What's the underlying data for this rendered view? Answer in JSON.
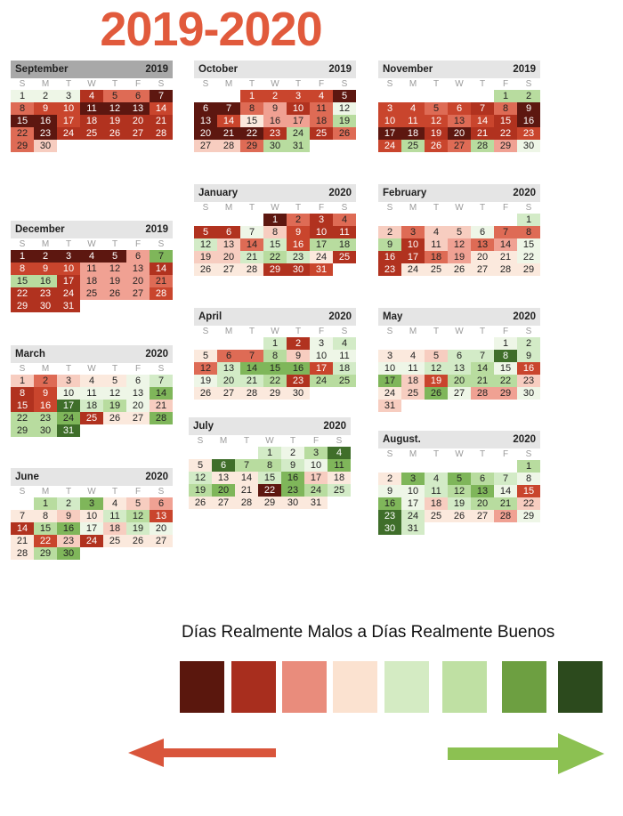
{
  "title": "2019-2020",
  "weekday_labels": [
    "S",
    "M",
    "T",
    "W",
    "T",
    "F",
    "S"
  ],
  "scale": {
    "dm": "#5d1710",
    "dr": "#b1321f",
    "md": "#c9452d",
    "rr": "#de6b55",
    "lr": "#f0a193",
    "pk": "#f7cdc0",
    "be": "#fbe9dd",
    "wg": "#eef6e7",
    "lg": "#d3ebc7",
    "mg": "#b8dc9f",
    "gg": "#7fb65a",
    "dg": "#3f6e2a"
  },
  "months": [
    {
      "name": "September",
      "year": "2019",
      "start": 0,
      "days": 30,
      "dark_header": true,
      "colors": [
        "wg",
        "wg",
        "wg",
        "dr",
        "rr",
        "rr",
        "dm",
        "rr",
        "md",
        "md",
        "dm",
        "dm",
        "dm",
        "md",
        "dm",
        "dm",
        "md",
        "dr",
        "dr",
        "dr",
        "dr",
        "rr",
        "dm",
        "dr",
        "dr",
        "dr",
        "dr",
        "dr",
        "rr",
        "pk"
      ]
    },
    {
      "name": "October",
      "year": "2019",
      "start": 2,
      "days": 31,
      "colors": [
        "md",
        "md",
        "md",
        "md",
        "dm",
        "dm",
        "dm",
        "rr",
        "lr",
        "dr",
        "rr",
        "wg",
        "dm",
        "md",
        "be",
        "lr",
        "lr",
        "rr",
        "mg",
        "dm",
        "dm",
        "dm",
        "dr",
        "mg",
        "dr",
        "rr",
        "pk",
        "pk",
        "rr",
        "mg",
        "mg"
      ]
    },
    {
      "name": "November",
      "year": "2019",
      "start": 5,
      "days": 30,
      "colors": [
        "mg",
        "mg",
        "md",
        "md",
        "rr",
        "md",
        "dr",
        "rr",
        "dm",
        "md",
        "md",
        "md",
        "rr",
        "md",
        "dr",
        "dm",
        "dm",
        "dm",
        "dr",
        "dm",
        "dr",
        "dr",
        "md",
        "md",
        "mg",
        "md",
        "rr",
        "mg",
        "lr",
        "wg"
      ]
    },
    {
      "name": "December",
      "year": "2019",
      "start": 0,
      "days": 31,
      "colors": [
        "dm",
        "dm",
        "dm",
        "dm",
        "dm",
        "lr",
        "gg",
        "md",
        "md",
        "md",
        "lr",
        "lr",
        "lr",
        "dr",
        "mg",
        "mg",
        "dr",
        "lr",
        "lr",
        "lr",
        "rr",
        "dr",
        "dr",
        "dr",
        "lr",
        "lr",
        "lr",
        "md",
        "dr",
        "dr",
        "dr"
      ]
    },
    {
      "name": "January",
      "year": "2020",
      "start": 3,
      "days": 31,
      "colors": [
        "dm",
        "rr",
        "dr",
        "rr",
        "dr",
        "dr",
        "wg",
        "pk",
        "md",
        "dr",
        "dr",
        "lg",
        "pk",
        "rr",
        "lg",
        "md",
        "mg",
        "mg",
        "pk",
        "pk",
        "lg",
        "mg",
        "lg",
        "be",
        "dr",
        "be",
        "be",
        "be",
        "dr",
        "dr",
        "md"
      ]
    },
    {
      "name": "February",
      "year": "2020",
      "start": 6,
      "days": 29,
      "colors": [
        "lg",
        "pk",
        "rr",
        "pk",
        "pk",
        "wg",
        "rr",
        "rr",
        "mg",
        "dr",
        "pk",
        "lr",
        "rr",
        "lr",
        "wg",
        "dr",
        "dr",
        "rr",
        "lr",
        "be",
        "be",
        "wg",
        "dr",
        "be",
        "be",
        "be",
        "be",
        "be",
        "be"
      ]
    },
    {
      "name": "March",
      "year": "2020",
      "start": 0,
      "days": 31,
      "colors": [
        "pk",
        "rr",
        "pk",
        "be",
        "be",
        "wg",
        "lg",
        "dr",
        "md",
        "wg",
        "wg",
        "wg",
        "wg",
        "gg",
        "dr",
        "md",
        "dg",
        "lg",
        "mg",
        "wg",
        "pk",
        "mg",
        "mg",
        "gg",
        "dr",
        "be",
        "be",
        "gg",
        "mg",
        "mg",
        "dg"
      ]
    },
    {
      "name": "April",
      "year": "2020",
      "start": 3,
      "days": 30,
      "colors": [
        "lg",
        "dr",
        "wg",
        "lg",
        "be",
        "rr",
        "rr",
        "mg",
        "pk",
        "wg",
        "wg",
        "rr",
        "lg",
        "gg",
        "gg",
        "gg",
        "md",
        "lg",
        "wg",
        "lg",
        "lg",
        "mg",
        "dr",
        "mg",
        "mg",
        "be",
        "be",
        "be",
        "be",
        "be"
      ]
    },
    {
      "name": "May",
      "year": "2020",
      "start": 5,
      "days": 31,
      "colors": [
        "wg",
        "lg",
        "be",
        "be",
        "pk",
        "lg",
        "lg",
        "dg",
        "lg",
        "wg",
        "wg",
        "lg",
        "lg",
        "mg",
        "wg",
        "md",
        "gg",
        "pk",
        "md",
        "mg",
        "mg",
        "mg",
        "pk",
        "be",
        "pk",
        "gg",
        "wg",
        "lr",
        "lr",
        "wg",
        "pk"
      ]
    },
    {
      "name": "June",
      "year": "2020",
      "start": 1,
      "days": 30,
      "colors": [
        "mg",
        "lg",
        "gg",
        "be",
        "pk",
        "lr",
        "be",
        "be",
        "pk",
        "be",
        "lg",
        "mg",
        "md",
        "dr",
        "mg",
        "gg",
        "wg",
        "pk",
        "lg",
        "wg",
        "be",
        "md",
        "pk",
        "dr",
        "be",
        "be",
        "be",
        "be",
        "mg",
        "gg"
      ]
    },
    {
      "name": "July",
      "year": "2020",
      "start": 3,
      "days": 31,
      "colors": [
        "lg",
        "wg",
        "mg",
        "dg",
        "be",
        "dg",
        "mg",
        "mg",
        "lg",
        "wg",
        "gg",
        "lg",
        "be",
        "be",
        "lg",
        "gg",
        "pk",
        "be",
        "mg",
        "gg",
        "be",
        "dm",
        "gg",
        "mg",
        "lg",
        "be",
        "be",
        "be",
        "be",
        "be",
        "be"
      ]
    },
    {
      "name": "August.",
      "year": "2020",
      "start": 6,
      "days": 31,
      "colors": [
        "mg",
        "be",
        "gg",
        "lg",
        "gg",
        "mg",
        "lg",
        "wg",
        "wg",
        "wg",
        "lg",
        "mg",
        "gg",
        "wg",
        "md",
        "gg",
        "wg",
        "pk",
        "lg",
        "mg",
        "mg",
        "pk",
        "dg",
        "lg",
        "be",
        "be",
        "be",
        "lr",
        "wg",
        "dg",
        "lg"
      ]
    }
  ],
  "legend": {
    "text": "Días Realmente Malos a Días Realmente Buenos",
    "swatches": [
      "#5a170d",
      "#a82e1e",
      "#e98c7c",
      "#fbe2d0",
      "#d4ebc3",
      "#bfe0a3",
      "#6d9f41",
      "#2c4a1d"
    ]
  },
  "arrows": {
    "left_color": "#d9553b",
    "right_color": "#8cc152"
  }
}
